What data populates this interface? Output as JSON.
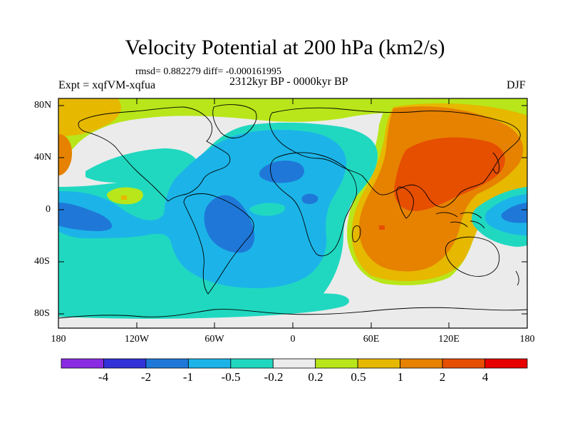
{
  "title": "Velocity Potential at 200 hPa (km2/s)",
  "stats": "rmsd= 0.882279 diff= -0.000161995",
  "experiment": "Expt = xqfVM-xqfua",
  "period": "2312kyr BP - 0000kyr BP",
  "season": "DJF",
  "lat_labels": [
    "80N",
    "40N",
    "0",
    "40S",
    "80S"
  ],
  "lon_labels": [
    "180",
    "120W",
    "60W",
    "0",
    "60E",
    "120E",
    "180"
  ],
  "colorbar": {
    "colors": [
      "#8a2be2",
      "#3232d8",
      "#1f78d8",
      "#1cb4e8",
      "#20d8c0",
      "#ebebeb",
      "#b8e61a",
      "#e6b800",
      "#e68200",
      "#e64e00",
      "#e60000"
    ],
    "labels": [
      "-4",
      "-2",
      "-1",
      "-0.5",
      "-0.2",
      "0.2",
      "0.5",
      "1",
      "2",
      "4"
    ]
  },
  "map": {
    "background": "#ebebeb",
    "land_outline": "#000000"
  }
}
